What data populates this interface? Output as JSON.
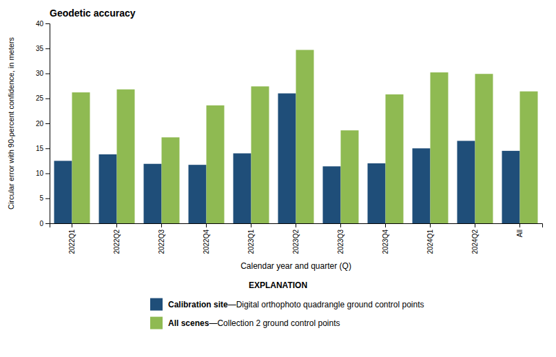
{
  "chart_data": {
    "type": "bar",
    "title": "Geodetic accuracy",
    "xlabel": "Calendar year and quarter (Q)",
    "ylabel": "Circular error with 90-percent confidence, in meters",
    "categories": [
      "2022Q1",
      "2022Q2",
      "2022Q3",
      "2022Q4",
      "2023Q1",
      "2023Q2",
      "2023Q3",
      "2023Q4",
      "2024Q1",
      "2024Q2",
      "All"
    ],
    "series": [
      {
        "name": "Calibration site",
        "description": "—Digital orthophoto quadrangle ground control points",
        "color": "#1f4e79",
        "values": [
          12.5,
          13.8,
          11.9,
          11.7,
          14.0,
          26.0,
          11.4,
          12.0,
          15.0,
          16.5,
          14.5
        ]
      },
      {
        "name": "All scenes",
        "description": "—Collection 2 ground control points",
        "color": "#8fba52",
        "values": [
          26.2,
          26.8,
          17.2,
          23.6,
          27.4,
          34.7,
          18.6,
          25.8,
          30.2,
          29.9,
          26.4
        ]
      }
    ],
    "ylim": [
      0,
      40
    ],
    "yticks": [
      0,
      5,
      10,
      15,
      20,
      25,
      30,
      35,
      40
    ],
    "grid": false,
    "legend": "bottom",
    "legend_title": "EXPLANATION"
  }
}
